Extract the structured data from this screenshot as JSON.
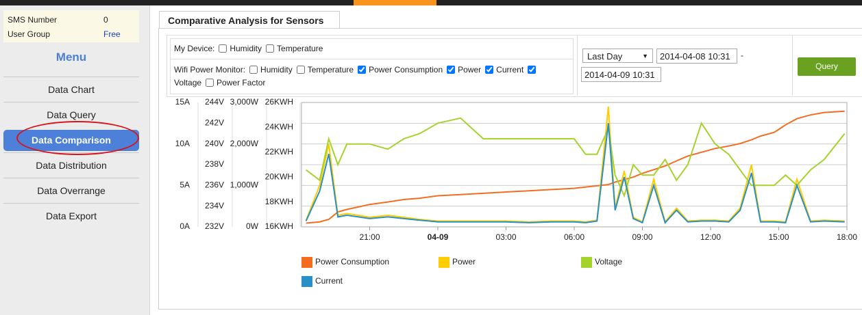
{
  "sidebar": {
    "info": [
      [
        "SMS Number",
        "0"
      ],
      [
        "User Group",
        "Free"
      ]
    ],
    "menu_title": "Menu",
    "menu": [
      "Data Chart",
      "Data Query",
      "Data Comparison",
      "Data Distribution",
      "Data Overrange",
      "Data Export"
    ],
    "active": 2
  },
  "panel": {
    "tab": "Comparative Analysis for Sensors",
    "my_device": {
      "label": "My Device:",
      "options": [
        {
          "label": "Humidity",
          "checked": false
        },
        {
          "label": "Temperature",
          "checked": false
        }
      ]
    },
    "wifi": {
      "label": "Wifi Power Monitor:",
      "options": [
        {
          "label": "Humidity",
          "checked": false
        },
        {
          "label": "Temperature",
          "checked": false
        },
        {
          "label": "Power Consumption",
          "checked": true
        },
        {
          "label": "Power",
          "checked": true
        },
        {
          "label": "Current",
          "checked": true
        },
        {
          "label": "Voltage",
          "checked": true
        },
        {
          "label": "Power Factor",
          "checked": false
        }
      ]
    },
    "range": {
      "select": "Last Day",
      "from": "2014-04-08 10:31",
      "separator": "-",
      "to": "2014-04-09 10:31"
    },
    "query": "Query"
  },
  "chart_data": {
    "type": "line",
    "x": [
      18.2,
      18.8,
      19.2,
      19.6,
      20.0,
      20.5,
      21.0,
      21.8,
      22.5,
      23.2,
      24.0,
      25.0,
      26.0,
      27.0,
      28.0,
      29.0,
      30.0,
      30.5,
      31.0,
      31.5,
      31.8,
      32.2,
      32.6,
      33.0,
      33.5,
      34.0,
      34.5,
      35.0,
      35.6,
      36.2,
      36.8,
      37.3,
      37.8,
      38.2,
      38.8,
      39.3,
      39.8,
      40.4,
      41.0,
      41.9
    ],
    "xlim": [
      18,
      42
    ],
    "xticks": [
      {
        "value": 21,
        "label": "21:00"
      },
      {
        "value": 24,
        "label": "04-09"
      },
      {
        "value": 27,
        "label": "03:00"
      },
      {
        "value": 30,
        "label": "06:00"
      },
      {
        "value": 33,
        "label": "09:00"
      },
      {
        "value": 36,
        "label": "12:00"
      },
      {
        "value": 39,
        "label": "15:00"
      },
      {
        "value": 42,
        "label": "18:00"
      }
    ],
    "axes": [
      {
        "ylim": [
          0,
          15
        ],
        "yticks": [
          {
            "value": 0,
            "label": "0A"
          },
          {
            "value": 5,
            "label": "5A"
          },
          {
            "value": 10,
            "label": "10A"
          },
          {
            "value": 15,
            "label": "15A"
          }
        ]
      },
      {
        "ylim": [
          232,
          244
        ],
        "grid": true,
        "yticks": [
          {
            "value": 232,
            "label": "232V"
          },
          {
            "value": 234,
            "label": "234V"
          },
          {
            "value": 236,
            "label": "236V"
          },
          {
            "value": 238,
            "label": "238V"
          },
          {
            "value": 240,
            "label": "240V"
          },
          {
            "value": 242,
            "label": "242V"
          },
          {
            "value": 244,
            "label": "244V"
          }
        ]
      },
      {
        "ylim": [
          0,
          3000
        ],
        "yticks": [
          {
            "value": 0,
            "label": "0W"
          },
          {
            "value": 1000,
            "label": "1,000W"
          },
          {
            "value": 2000,
            "label": "2,000W"
          },
          {
            "value": 3000,
            "label": "3,000W"
          }
        ]
      },
      {
        "ylim": [
          16,
          26
        ],
        "yticks": [
          {
            "value": 16,
            "label": "16KWH"
          },
          {
            "value": 18,
            "label": "18KWH"
          },
          {
            "value": 20,
            "label": "20KWH"
          },
          {
            "value": 22,
            "label": "22KWH"
          },
          {
            "value": 24,
            "label": "24KWH"
          },
          {
            "value": 26,
            "label": "26KWH"
          }
        ]
      }
    ],
    "series": [
      {
        "name": "Power Consumption",
        "color": "#f26d21",
        "axis": 3,
        "values": [
          16.3,
          16.4,
          16.6,
          17.2,
          17.4,
          17.6,
          17.8,
          18.0,
          18.2,
          18.3,
          18.5,
          18.6,
          18.7,
          18.8,
          18.9,
          19.0,
          19.1,
          19.2,
          19.3,
          19.4,
          19.6,
          19.8,
          20.0,
          20.3,
          20.6,
          20.9,
          21.3,
          21.7,
          22.0,
          22.3,
          22.5,
          22.7,
          23.0,
          23.3,
          23.6,
          24.2,
          24.7,
          25.0,
          25.2,
          25.3
        ]
      },
      {
        "name": "Power",
        "color": "#ffcc00",
        "axis": 2,
        "values": [
          150,
          1000,
          2000,
          280,
          320,
          280,
          230,
          280,
          230,
          180,
          140,
          140,
          140,
          140,
          120,
          140,
          140,
          120,
          160,
          2900,
          450,
          1350,
          230,
          120,
          1150,
          120,
          450,
          140,
          160,
          160,
          140,
          450,
          1500,
          140,
          140,
          120,
          1150,
          140,
          160,
          140
        ]
      },
      {
        "name": "Voltage",
        "color": "#a5d22c",
        "axis": 1,
        "values": [
          237.5,
          236.5,
          240.5,
          238,
          240,
          240,
          240,
          239.5,
          240.5,
          241,
          242,
          242.5,
          240.5,
          240.5,
          240.5,
          240.5,
          240.5,
          239,
          239,
          241.5,
          237,
          235,
          238,
          237,
          237,
          238.5,
          236.5,
          238,
          242,
          240,
          239,
          237.5,
          236,
          236,
          236,
          237,
          236,
          237.5,
          238.5,
          241
        ]
      },
      {
        "name": "Current",
        "color": "#2a8fc4",
        "axis": 0,
        "values": [
          0.7,
          4.3,
          8.8,
          1.2,
          1.4,
          1.2,
          1.0,
          1.2,
          1.0,
          0.8,
          0.6,
          0.6,
          0.6,
          0.6,
          0.5,
          0.6,
          0.6,
          0.5,
          0.7,
          12.5,
          2.0,
          6.0,
          1.0,
          0.5,
          5.0,
          0.5,
          2.0,
          0.6,
          0.7,
          0.7,
          0.6,
          2.0,
          6.5,
          0.6,
          0.6,
          0.5,
          5.0,
          0.6,
          0.7,
          0.6
        ]
      }
    ]
  }
}
